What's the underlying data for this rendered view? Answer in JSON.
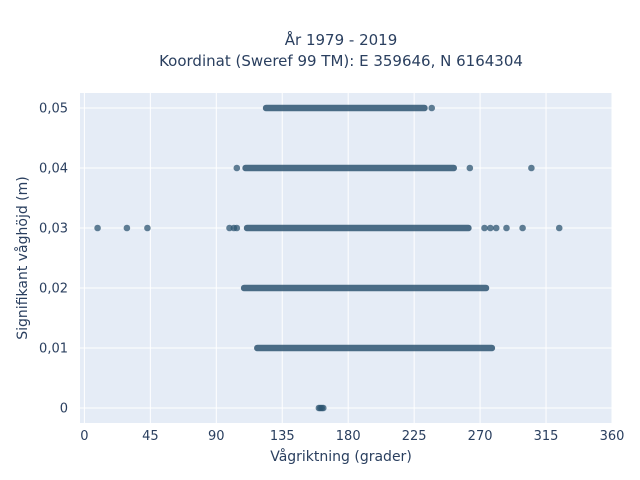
{
  "chart_data": {
    "type": "scatter",
    "title": [
      "År 1979 - 2019",
      "Koordinat (Sweref 99 TM): E 359646, N 6164304"
    ],
    "xlabel": "Vågriktning (grader)",
    "ylabel": "Signifikant våghöjd (m)",
    "xlim": [
      -3,
      360
    ],
    "ylim": [
      -0.0025,
      0.0525
    ],
    "x_ticks": [
      0,
      45,
      90,
      135,
      180,
      225,
      270,
      315,
      360
    ],
    "x_tick_labels": [
      "0",
      "45",
      "90",
      "135",
      "180",
      "225",
      "270",
      "315",
      "360"
    ],
    "y_ticks": [
      0,
      0.01,
      0.02,
      0.03,
      0.04,
      0.05
    ],
    "y_tick_labels": [
      "0",
      "0,01",
      "0,02",
      "0,03",
      "0,04",
      "0,05"
    ],
    "grid": true,
    "colors": {
      "marker": "#2e5572",
      "plot_background": "#e5ecf6",
      "grid": "#ffffff"
    },
    "bands": [
      {
        "y": 0.05,
        "x_min": 124,
        "x_max": 232
      },
      {
        "y": 0.04,
        "x_min": 110,
        "x_max": 252
      },
      {
        "y": 0.03,
        "x_min": 111,
        "x_max": 262
      },
      {
        "y": 0.02,
        "x_min": 109,
        "x_max": 274
      },
      {
        "y": 0.01,
        "x_min": 118,
        "x_max": 278
      }
    ],
    "points": [
      {
        "x": 237,
        "y": 0.05
      },
      {
        "x": 104,
        "y": 0.04
      },
      {
        "x": 263,
        "y": 0.04
      },
      {
        "x": 305,
        "y": 0.04
      },
      {
        "x": 9,
        "y": 0.03
      },
      {
        "x": 29,
        "y": 0.03
      },
      {
        "x": 43,
        "y": 0.03
      },
      {
        "x": 99,
        "y": 0.03
      },
      {
        "x": 102,
        "y": 0.03
      },
      {
        "x": 104,
        "y": 0.03
      },
      {
        "x": 273,
        "y": 0.03
      },
      {
        "x": 277,
        "y": 0.03
      },
      {
        "x": 281,
        "y": 0.03
      },
      {
        "x": 288,
        "y": 0.03
      },
      {
        "x": 299,
        "y": 0.03
      },
      {
        "x": 324,
        "y": 0.03
      },
      {
        "x": 160,
        "y": 0
      },
      {
        "x": 161,
        "y": 0
      },
      {
        "x": 162,
        "y": 0
      },
      {
        "x": 163,
        "y": 0
      }
    ]
  }
}
